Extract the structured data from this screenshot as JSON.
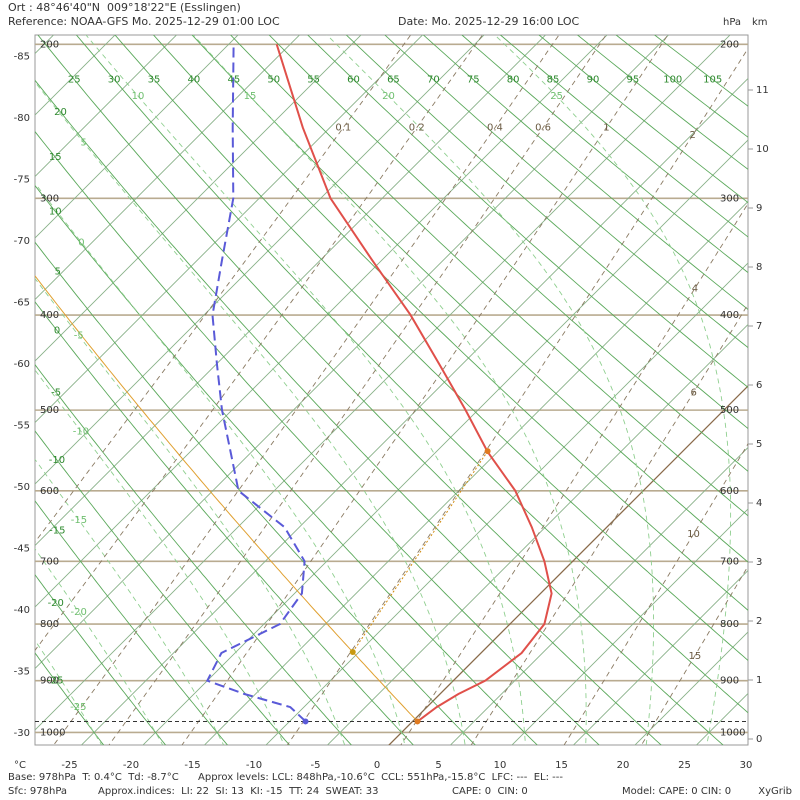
{
  "header": {
    "location": "Ort : 48°46'40\"N  009°18'22\"E (Esslingen)",
    "reference": "Reference: NOAA-GFS Mo. 2025-12-29 01:00 LOC",
    "date": "Date: Mo. 2025-12-29 16:00 LOC",
    "pressure_unit": "hPa",
    "height_unit": "km"
  },
  "chart_data": {
    "type": "skewt",
    "x_label": "°C",
    "pressure_ticks": [
      200,
      300,
      400,
      500,
      600,
      700,
      800,
      900,
      1000
    ],
    "height_ticks": [
      0,
      1,
      2,
      3,
      4,
      5,
      6,
      7,
      8,
      9,
      10,
      11
    ],
    "isotherms": [
      -85,
      -80,
      -75,
      -70,
      -65,
      -60,
      -55,
      -50,
      -45,
      -40,
      -35,
      -30,
      -25,
      -20,
      -15,
      -10,
      -5,
      0,
      5,
      10,
      15,
      20,
      25,
      30
    ],
    "dry_adiabats": [
      -25,
      -20,
      -15,
      -10,
      -5,
      0,
      5,
      10,
      15,
      20,
      25,
      30,
      35,
      40,
      45,
      50,
      55,
      60,
      65,
      70,
      75,
      80,
      85,
      90,
      95,
      100,
      105
    ],
    "moist_adiabats": [
      -25,
      -20,
      -15,
      -10,
      -5,
      0,
      5,
      10,
      15,
      20,
      25
    ],
    "mixing_ratios": [
      0.1,
      0.2,
      0.4,
      0.6,
      1,
      2,
      4,
      6,
      10,
      15
    ],
    "pressure": [
      978,
      950,
      925,
      900,
      850,
      800,
      750,
      700,
      650,
      600,
      550,
      500,
      450,
      400,
      350,
      300,
      250,
      200
    ],
    "temperature": {
      "color": "#e0504a",
      "values": [
        0.4,
        0.8,
        1.5,
        2.6,
        3.3,
        2.8,
        0.9,
        -2.3,
        -6.1,
        -10.4,
        -15.8,
        -21.0,
        -26.8,
        -33.2,
        -40.8,
        -49.2,
        -57.2,
        -66.1
      ]
    },
    "dewpoint": {
      "color": "#5a5ad8",
      "values": [
        -8.7,
        -11.1,
        -15.9,
        -20.0,
        -21.1,
        -18.7,
        -19.4,
        -21.8,
        -26.2,
        -32.9,
        -36.7,
        -40.8,
        -44.9,
        -49.3,
        -53.0,
        -57.1,
        -62.9,
        -69.6
      ]
    }
  },
  "footer": {
    "base": "Base: 978hPa  T: 0.4°C  Td: -8.7°C",
    "levels": "Approx levels: LCL: 848hPa,-10.6°C  CCL: 551hPa,-15.8°C  LFC: ---  EL: ---",
    "surface": "Sfc: 978hPa",
    "indices": "Approx.indices:  LI: 22  SI: 13  KI: -15  TT: 24  SWEAT: 33",
    "cape": "CAPE: 0  CIN: 0",
    "model": "Model: CAPE: 0 CIN: 0",
    "app": "XyGrib"
  }
}
